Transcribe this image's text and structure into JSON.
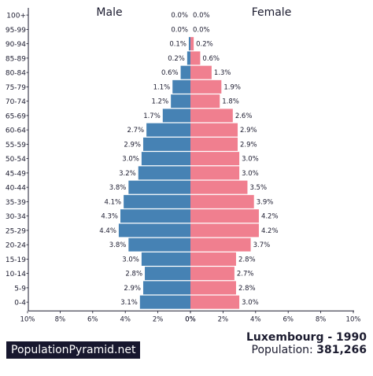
{
  "chart_data": {
    "type": "bar",
    "orientation": "horizontal-pyramid",
    "categories": [
      "100+",
      "95-99",
      "90-94",
      "85-89",
      "80-84",
      "75-79",
      "70-74",
      "65-69",
      "60-64",
      "55-59",
      "50-54",
      "45-49",
      "40-44",
      "35-39",
      "30-34",
      "25-29",
      "20-24",
      "15-19",
      "10-14",
      "5-9",
      "0-4"
    ],
    "series": [
      {
        "name": "Male",
        "values": [
          0.0,
          0.0,
          0.1,
          0.2,
          0.6,
          1.1,
          1.2,
          1.7,
          2.7,
          2.9,
          3.0,
          3.2,
          3.8,
          4.1,
          4.3,
          4.4,
          3.8,
          3.0,
          2.8,
          2.9,
          3.1
        ],
        "labels": [
          "0.0%",
          "0.0%",
          "0.1%",
          "0.2%",
          "0.6%",
          "1.1%",
          "1.2%",
          "1.7%",
          "2.7%",
          "2.9%",
          "3.0%",
          "3.2%",
          "3.8%",
          "4.1%",
          "4.3%",
          "4.4%",
          "3.8%",
          "3.0%",
          "2.8%",
          "2.9%",
          "3.1%"
        ],
        "color": "#4682b4"
      },
      {
        "name": "Female",
        "values": [
          0.0,
          0.0,
          0.2,
          0.6,
          1.3,
          1.9,
          1.8,
          2.6,
          2.9,
          2.9,
          3.0,
          3.0,
          3.5,
          3.9,
          4.2,
          4.2,
          3.7,
          2.8,
          2.7,
          2.8,
          3.0
        ],
        "labels": [
          "0.0%",
          "0.0%",
          "0.2%",
          "0.6%",
          "1.3%",
          "1.9%",
          "1.8%",
          "2.6%",
          "2.9%",
          "2.9%",
          "3.0%",
          "3.0%",
          "3.5%",
          "3.9%",
          "4.2%",
          "4.2%",
          "3.7%",
          "2.8%",
          "2.7%",
          "2.8%",
          "3.0%"
        ],
        "color": "#f07f8f"
      }
    ],
    "xlim": [
      0,
      10
    ],
    "x_ticks_left": [
      "10%",
      "8%",
      "6%",
      "4%",
      "2%",
      "0%"
    ],
    "x_ticks_right": [
      "0%",
      "2%",
      "4%",
      "6%",
      "8%",
      "10%"
    ],
    "unit": "%"
  },
  "branding": {
    "site": "PopulationPyramid.net"
  },
  "footer": {
    "country_year": "Luxembourg - 1990",
    "population_label": "Population:",
    "population_value": "381,266"
  }
}
